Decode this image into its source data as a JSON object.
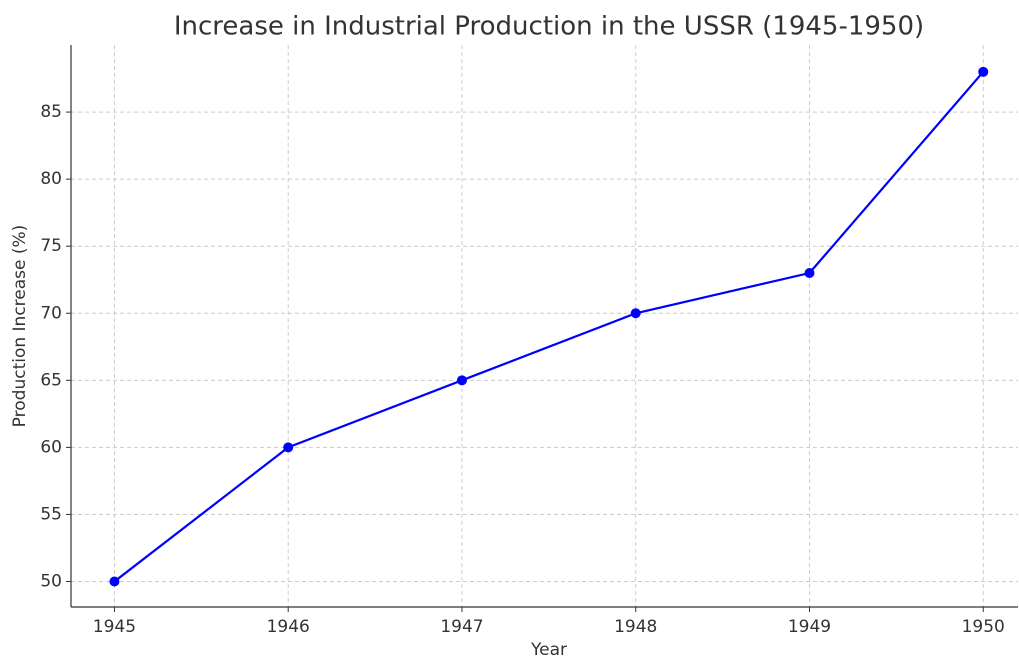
{
  "chart_data": {
    "type": "line",
    "title": "Increase in Industrial Production in the USSR (1945-1950)",
    "xlabel": "Year",
    "ylabel": "Production Increase (%)",
    "x": [
      1945,
      1946,
      1947,
      1948,
      1949,
      1950
    ],
    "series": [
      {
        "name": "Production Increase",
        "color": "#0000ff",
        "values": [
          50,
          60,
          65,
          70,
          73,
          88
        ]
      }
    ],
    "xlim": [
      1944.75,
      1950.2
    ],
    "xticks": [
      1945,
      1946,
      1947,
      1948,
      1949,
      1950
    ],
    "ylim": [
      48.1,
      90.0
    ],
    "yticks": [
      50,
      55,
      60,
      65,
      70,
      75,
      80,
      85
    ],
    "grid": true
  }
}
